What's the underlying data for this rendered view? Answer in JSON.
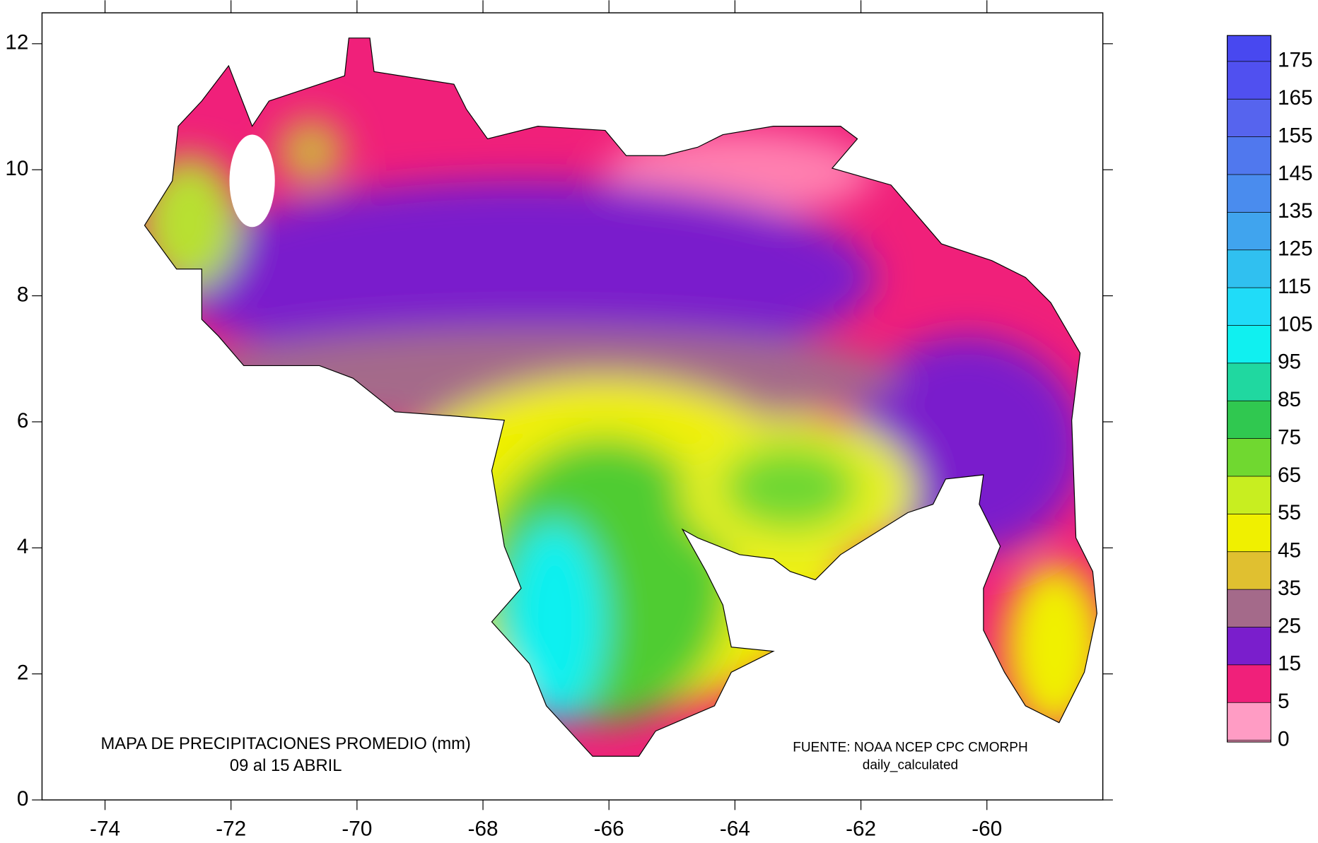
{
  "chart_data": {
    "type": "contour-map",
    "title": "MAPA DE PRECIPITACIONES PROMEDIO (mm)",
    "subtitle": "09 al 15 ABRIL",
    "source": "FUENTE: NOAA NCEP CPC CMORPH",
    "source_note": "daily_calculated",
    "xlim": [
      -75,
      -58.16
    ],
    "ylim": [
      0,
      12.49
    ],
    "xticks": [
      -74,
      -72,
      -70,
      -68,
      -66,
      -64,
      -62,
      -60
    ],
    "yticks": [
      0,
      2,
      4,
      6,
      8,
      10,
      12
    ],
    "colorbar": {
      "ticks": [
        0,
        5,
        15,
        25,
        35,
        45,
        55,
        65,
        75,
        85,
        95,
        105,
        115,
        125,
        135,
        145,
        155,
        165,
        175
      ],
      "colors": [
        "#ff9cc4",
        "#f0207a",
        "#7a1ecc",
        "#a46a8a",
        "#e0c030",
        "#f0f000",
        "#c8ee20",
        "#70d830",
        "#30c850",
        "#20d8a0",
        "#10f0f0",
        "#20dcf8",
        "#30c0f0",
        "#40a4ee",
        "#4a8cee",
        "#5078ee",
        "#5664ee",
        "#5050f0",
        "#4848f0"
      ]
    }
  }
}
